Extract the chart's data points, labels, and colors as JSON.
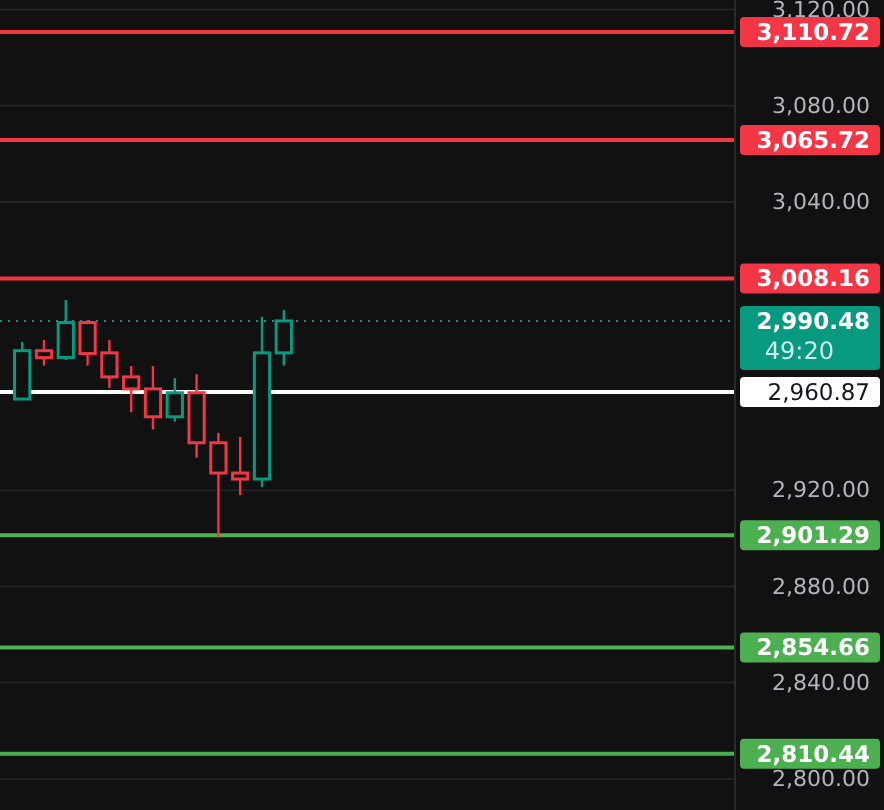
{
  "chart_data": {
    "type": "candlestick",
    "categories": [
      null,
      null,
      null,
      null,
      null,
      null,
      null,
      null,
      null,
      null,
      null,
      null,
      null,
      null,
      null,
      null,
      null,
      null,
      null,
      null,
      null,
      null,
      null,
      null,
      null,
      null,
      null,
      null,
      null,
      null,
      null,
      null,
      null
    ],
    "ohlc": [
      [
        2958,
        2981.7,
        2957.5,
        2978.1
      ],
      [
        2978.1,
        2982.5,
        2971.9,
        2975.2
      ],
      [
        2975.3,
        2999.2,
        2974.2,
        2989.8
      ],
      [
        2989.8,
        2990.8,
        2971.9,
        2976.9
      ],
      [
        2977.2,
        2982.5,
        2962.5,
        2967.2
      ],
      [
        2967.2,
        2971.7,
        2952.5,
        2962.2
      ],
      [
        2962.2,
        2971.7,
        2945.3,
        2950.6
      ],
      [
        2950.6,
        2966.7,
        2948.6,
        2960.6
      ],
      [
        2960.6,
        2968.3,
        2933.6,
        2939.8
      ],
      [
        2939.8,
        2943.9,
        2900.5,
        2927.2
      ],
      [
        2927.2,
        2942.2,
        2918,
        2924.7
      ],
      [
        2924.7,
        2992.2,
        2921.4,
        2977.2
      ],
      [
        2977.2,
        2995,
        2971.9,
        2990.48
      ],
      null,
      null,
      null,
      null,
      null,
      null,
      null,
      null,
      null,
      null,
      null,
      null,
      null,
      null,
      null,
      null,
      null,
      null,
      null,
      null
    ],
    "colors": [
      "#089981",
      "#f23645",
      "#089981",
      "#f23645",
      "#f23645",
      "#f23645",
      "#f23645",
      "#089981",
      "#f23645",
      "#f23645",
      "#f23645",
      "#089981",
      "#089981",
      null,
      null,
      null,
      null,
      null,
      null,
      null,
      null,
      null,
      null,
      null,
      null,
      null,
      null,
      null,
      null,
      null,
      null,
      null,
      null
    ],
    "ylim": [
      2787,
      3124
    ],
    "yticks": [
      {
        "value": 3120,
        "label": "3,120.00"
      },
      {
        "value": 3080,
        "label": "3,080.00"
      },
      {
        "value": 3040,
        "label": "3,040.00"
      },
      {
        "value": 2920,
        "label": "2,920.00"
      },
      {
        "value": 2880,
        "label": "2,880.00"
      },
      {
        "value": 2840,
        "label": "2,840.00"
      },
      {
        "value": 2800,
        "label": "2,800.00"
      }
    ],
    "tick_labels": "y",
    "grid": "y",
    "ref_lines": [
      {
        "axis": "y",
        "value": 3110.72,
        "label": "3,110.72",
        "color": "#f23645"
      },
      {
        "axis": "y",
        "value": 3065.72,
        "label": "3,065.72",
        "color": "#f23645"
      },
      {
        "axis": "y",
        "value": 3008.16,
        "label": "3,008.16",
        "color": "#f23645"
      },
      {
        "axis": "y",
        "value": 2990.48,
        "label": "2,990.48",
        "color": "#089981",
        "line_style": "dotted"
      },
      {
        "axis": "y",
        "value": 2960.87,
        "label": "2,960.87",
        "color": "#ffffff"
      },
      {
        "axis": "y",
        "value": 2901.29,
        "label": "2,901.29",
        "color": "#4caf50"
      },
      {
        "axis": "y",
        "value": 2854.66,
        "label": "2,854.66",
        "color": "#4caf50"
      },
      {
        "axis": "y",
        "value": 2810.44,
        "label": "2,810.44",
        "color": "#4caf50"
      }
    ],
    "annotations": [
      "49:20"
    ]
  }
}
